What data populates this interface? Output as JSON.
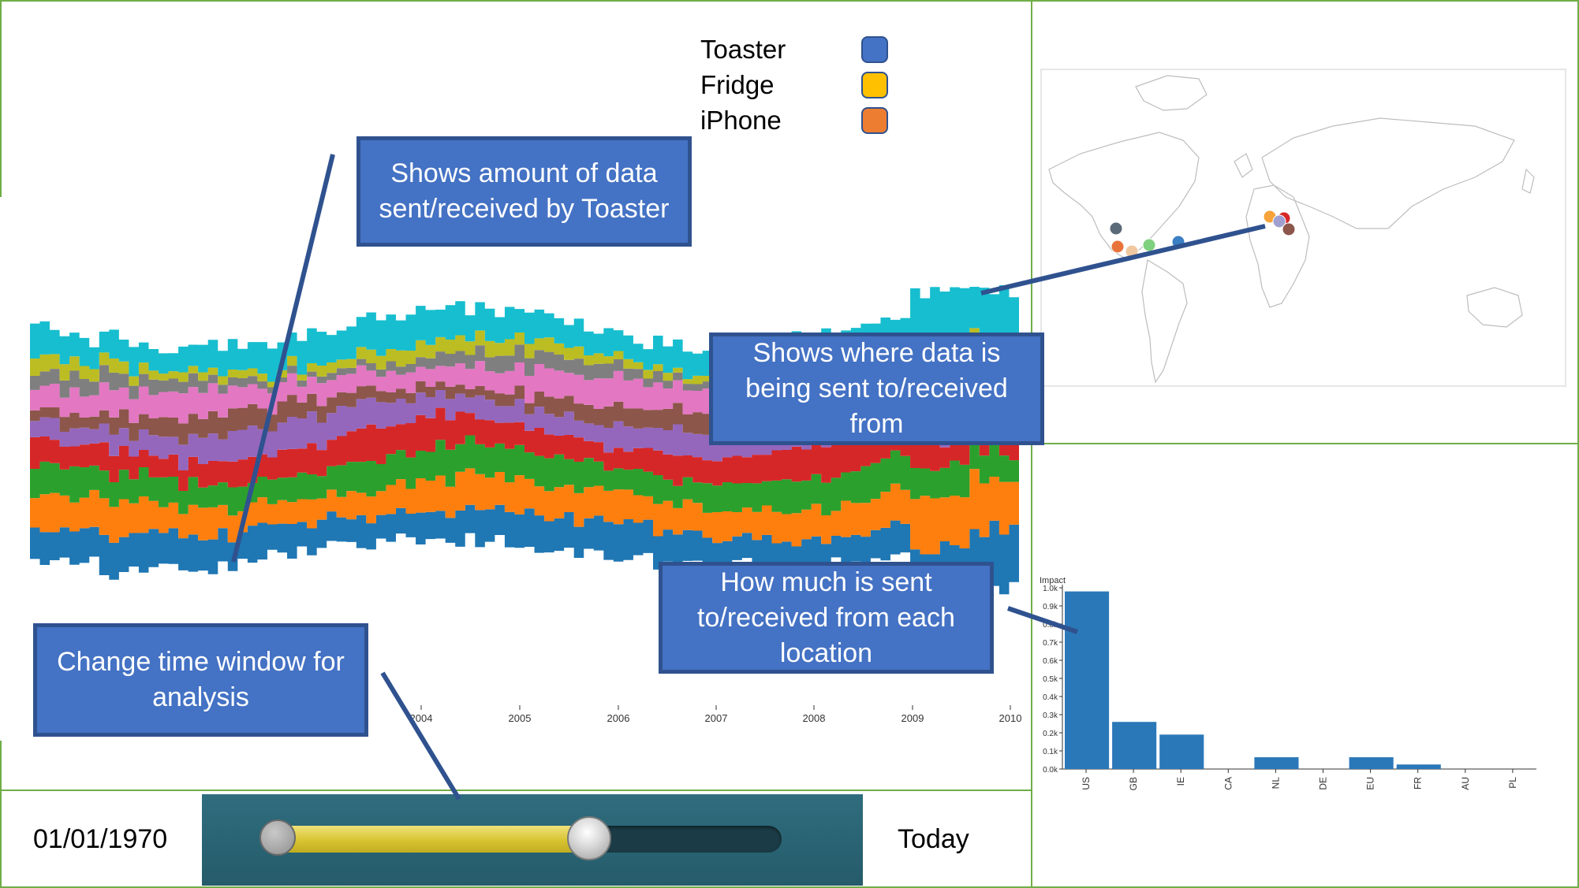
{
  "legend": {
    "items": [
      {
        "label": "Toaster",
        "color": "#4472c4"
      },
      {
        "label": "Fridge",
        "color": "#ffc000"
      },
      {
        "label": "iPhone",
        "color": "#ed7d31"
      }
    ]
  },
  "callouts": {
    "stream": "Shows amount of data sent/received by Toaster",
    "map": "Shows where data is being sent to/received from",
    "bars": "How much is sent to/received from each location",
    "time": "Change time window for analysis"
  },
  "time_window": {
    "start_label": "01/01/1970",
    "end_label": "Today",
    "selected_fraction": 0.63
  },
  "map": {
    "points": [
      {
        "color": "#5a6a78"
      },
      {
        "color": "#e8743b"
      },
      {
        "color": "#f0c8a0"
      },
      {
        "color": "#7fd07f"
      },
      {
        "color": "#3b7fc4"
      },
      {
        "color": "#f5a33a"
      },
      {
        "color": "#d62728"
      },
      {
        "color": "#9f9fd0"
      },
      {
        "color": "#8c564b"
      }
    ]
  },
  "chart_data": [
    {
      "type": "area",
      "x_ticks": [
        "2004",
        "2005",
        "2006",
        "2007",
        "2008",
        "2009",
        "2010"
      ],
      "layer_colors": [
        "#1f77b4",
        "#ff7f0e",
        "#2ca02c",
        "#d62728",
        "#9467bd",
        "#8c564b",
        "#e377c2",
        "#7f7f7f",
        "#bcbd22",
        "#17becf"
      ]
    },
    {
      "type": "bar",
      "ylabel": "Impact",
      "y_ticks": [
        "0.0k",
        "0.1k",
        "0.2k",
        "0.3k",
        "0.4k",
        "0.5k",
        "0.6k",
        "0.7k",
        "0.8k",
        "0.9k",
        "1.0k"
      ],
      "categories": [
        "US",
        "GB",
        "IE",
        "CA",
        "NL",
        "DE",
        "EU",
        "FR",
        "AU",
        "PL"
      ],
      "values": [
        0.98,
        0.26,
        0.19,
        0,
        0.065,
        0,
        0.065,
        0.025,
        0,
        0
      ],
      "ylim": [
        0,
        1.0
      ],
      "color": "#2b78b8"
    }
  ]
}
